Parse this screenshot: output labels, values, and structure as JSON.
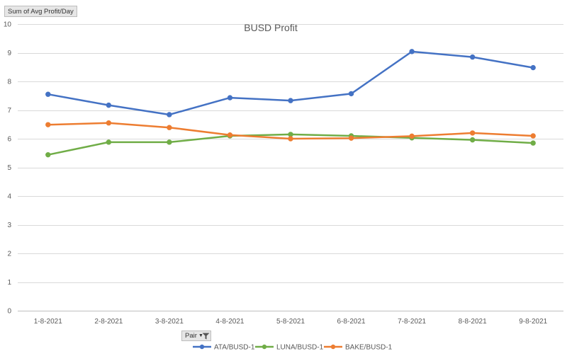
{
  "field_button": {
    "label": "Sum of Avg Profit/Day"
  },
  "filter_button": {
    "label": "Pair",
    "arrow_icon": "dropdown-arrow-icon",
    "icon": "filter-funnel-icon"
  },
  "chart_data": {
    "type": "line",
    "title": "BUSD Profit",
    "xlabel": "",
    "ylabel": "",
    "categories": [
      "1-8-2021",
      "2-8-2021",
      "3-8-2021",
      "4-8-2021",
      "5-8-2021",
      "6-8-2021",
      "7-8-2021",
      "8-8-2021",
      "9-8-2021"
    ],
    "ylim": [
      0,
      10
    ],
    "yticks": [
      0,
      1,
      2,
      3,
      4,
      5,
      6,
      7,
      8,
      9,
      10
    ],
    "grid": true,
    "legend_position": "bottom",
    "series": [
      {
        "name": "ATA/BUSD-1",
        "color": "#4472c4",
        "values": [
          7.55,
          7.17,
          6.84,
          7.43,
          7.33,
          7.57,
          9.04,
          8.85,
          8.48
        ]
      },
      {
        "name": "LUNA/BUSD-1",
        "color": "#70ad47",
        "values": [
          5.44,
          5.88,
          5.88,
          6.1,
          6.15,
          6.1,
          6.03,
          5.96,
          5.85
        ]
      },
      {
        "name": "BAKE/BUSD-1",
        "color": "#ed7d31",
        "values": [
          6.49,
          6.55,
          6.39,
          6.13,
          6.0,
          6.02,
          6.09,
          6.2,
          6.1
        ]
      }
    ]
  }
}
